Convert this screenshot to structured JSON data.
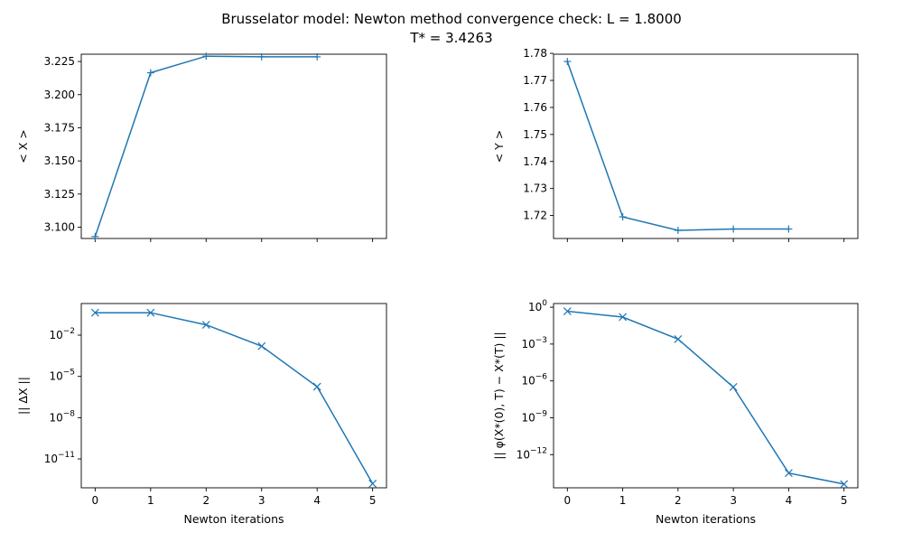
{
  "figure": {
    "title_line1": "Brusselator model: Newton method convergence check: L = 1.8000",
    "title_line2": "T* = 3.4263"
  },
  "colors": {
    "series": "#1f77b4"
  },
  "chart_data": [
    {
      "type": "line",
      "marker": "plus",
      "scale": "linear",
      "ylabel": "< X >",
      "xlabel": "",
      "xlim": [
        -0.25,
        5.25
      ],
      "ylim": [
        3.0915,
        3.2305
      ],
      "xticks": [
        0,
        1,
        2,
        3,
        4,
        5
      ],
      "show_xtick_labels": false,
      "yticks": [
        3.1,
        3.125,
        3.15,
        3.175,
        3.2,
        3.225
      ],
      "ytick_labels": [
        "3.100",
        "3.125",
        "3.150",
        "3.175",
        "3.200",
        "3.225"
      ],
      "x": [
        0,
        1,
        2,
        3,
        4
      ],
      "y": [
        3.093,
        3.2165,
        3.229,
        3.2285,
        3.2285
      ]
    },
    {
      "type": "line",
      "marker": "plus",
      "scale": "linear",
      "ylabel": "< Y >",
      "xlabel": "",
      "xlim": [
        -0.25,
        5.25
      ],
      "ylim": [
        1.7115,
        1.7797
      ],
      "xticks": [
        0,
        1,
        2,
        3,
        4,
        5
      ],
      "show_xtick_labels": false,
      "yticks": [
        1.72,
        1.73,
        1.74,
        1.75,
        1.76,
        1.77,
        1.78
      ],
      "ytick_labels": [
        "1.72",
        "1.73",
        "1.74",
        "1.75",
        "1.76",
        "1.77",
        "1.78"
      ],
      "x": [
        0,
        1,
        2,
        3,
        4
      ],
      "y": [
        1.777,
        1.7195,
        1.7145,
        1.715,
        1.715
      ]
    },
    {
      "type": "line",
      "marker": "x",
      "scale": "log",
      "ylabel": "|| ΔX ||",
      "xlabel": "Newton iterations",
      "xlim": [
        -0.25,
        5.25
      ],
      "ylim_exp": [
        -13.1,
        0.3
      ],
      "xticks": [
        0,
        1,
        2,
        3,
        4,
        5
      ],
      "xtick_labels": [
        "0",
        "1",
        "2",
        "3",
        "4",
        "5"
      ],
      "show_xtick_labels": true,
      "yticks_exp": [
        -2,
        -5,
        -8,
        -11
      ],
      "ytick_labels": [
        "10",
        "10",
        "10",
        "10"
      ],
      "ytick_label_exps": [
        "−2",
        "−5",
        "−8",
        "−11"
      ],
      "x": [
        0,
        1,
        2,
        3,
        4,
        5
      ],
      "y_exp": [
        -0.37,
        -0.37,
        -1.25,
        -2.8,
        -5.75,
        -12.8
      ]
    },
    {
      "type": "line",
      "marker": "x",
      "scale": "log",
      "ylabel": "|| φ(X*(0), T) − X*(T) ||",
      "xlabel": "Newton iterations",
      "xlim": [
        -0.25,
        5.25
      ],
      "ylim_exp": [
        -14.7,
        0.3
      ],
      "xticks": [
        0,
        1,
        2,
        3,
        4,
        5
      ],
      "xtick_labels": [
        "0",
        "1",
        "2",
        "3",
        "4",
        "5"
      ],
      "show_xtick_labels": true,
      "yticks_exp": [
        0,
        -3,
        -6,
        -9,
        -12
      ],
      "ytick_labels": [
        "10",
        "10",
        "10",
        "10",
        "10"
      ],
      "ytick_label_exps": [
        "0",
        "−3",
        "−6",
        "−9",
        "−12"
      ],
      "x": [
        0,
        1,
        2,
        3,
        4,
        5
      ],
      "y_exp": [
        -0.33,
        -0.8,
        -2.6,
        -6.5,
        -13.5,
        -14.4
      ]
    }
  ]
}
